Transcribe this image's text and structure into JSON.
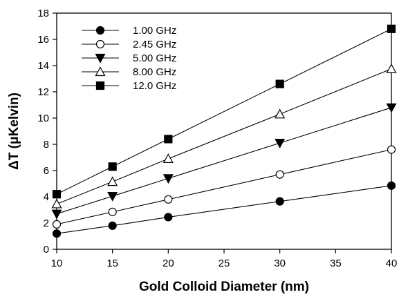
{
  "chart_data": {
    "type": "line",
    "xlabel": "Gold Colloid Diameter (nm)",
    "ylabel": "ΔT (μKelvin)",
    "xlim": [
      10,
      40
    ],
    "ylim": [
      0,
      18
    ],
    "xticks": [
      10,
      15,
      20,
      25,
      30,
      35,
      40
    ],
    "yticks": [
      0,
      2,
      4,
      6,
      8,
      10,
      12,
      14,
      16,
      18
    ],
    "grid": false,
    "legend_position": "top-left",
    "x": [
      10,
      15,
      20,
      30,
      40
    ],
    "series": [
      {
        "name": "1.00 GHz",
        "marker": "circle-filled",
        "values": [
          1.2,
          1.8,
          2.45,
          3.65,
          4.85
        ]
      },
      {
        "name": "2.45 GHz",
        "marker": "circle-open",
        "values": [
          1.9,
          2.85,
          3.8,
          5.7,
          7.6
        ]
      },
      {
        "name": "5.00 GHz",
        "marker": "triangle-down-filled",
        "values": [
          2.7,
          4.05,
          5.4,
          8.1,
          10.8
        ]
      },
      {
        "name": "8.00 GHz",
        "marker": "triangle-up-open",
        "values": [
          3.45,
          5.15,
          6.9,
          10.3,
          13.75
        ]
      },
      {
        "name": "12.0 GHz",
        "marker": "square-filled",
        "values": [
          4.2,
          6.3,
          8.4,
          12.6,
          16.8
        ]
      }
    ]
  }
}
